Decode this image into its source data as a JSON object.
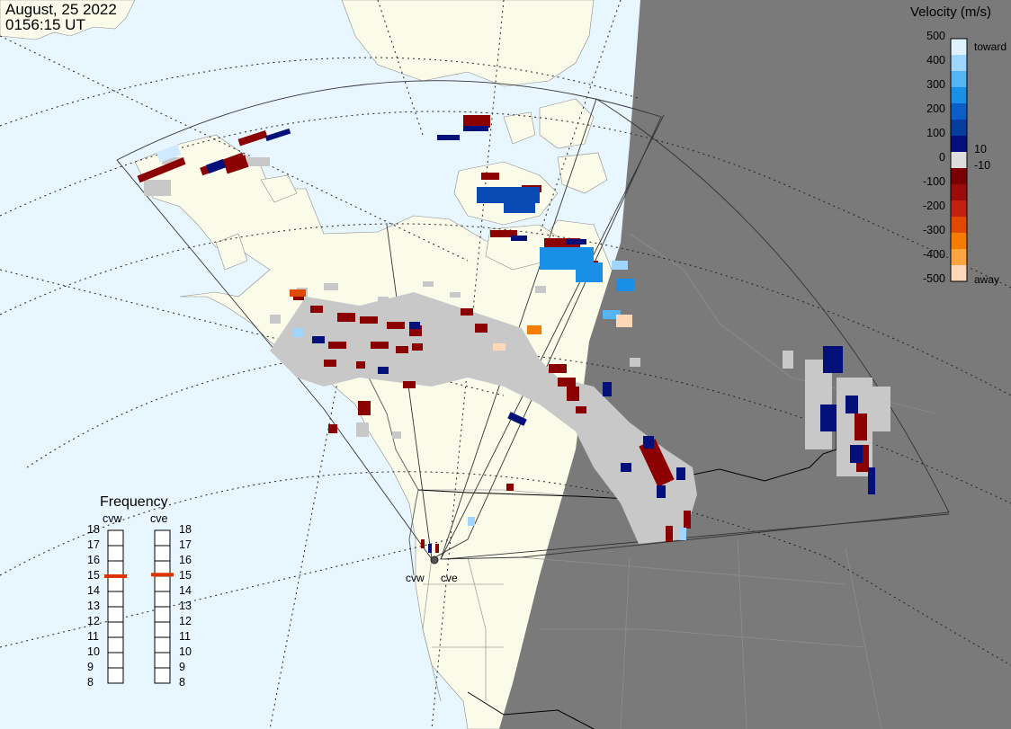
{
  "header": {
    "date": "August, 25 2022",
    "time": "0156:15 UT"
  },
  "velocity_scale": {
    "title": "Velocity (m/s)",
    "ticks": [
      "500",
      "400",
      "300",
      "200",
      "100",
      "10",
      "0",
      "-10",
      "-100",
      "-200",
      "-300",
      "-400",
      "-500"
    ],
    "toward_label": "toward",
    "away_label": "away",
    "colors": [
      "#dff3ff",
      "#9fd6ff",
      "#55b4f5",
      "#1a8fe8",
      "#0a5fc7",
      "#083da0",
      "#04107a",
      "#dddddd",
      "#7a0000",
      "#9b0d0d",
      "#c22010",
      "#e04a00",
      "#f47c00",
      "#ffa440",
      "#ffd8b8"
    ]
  },
  "frequency": {
    "title": "Frequency",
    "radars": [
      {
        "name": "cvw",
        "value": 15
      },
      {
        "name": "cve",
        "value": 15.1
      }
    ],
    "ticks": [
      "18",
      "17",
      "16",
      "15",
      "14",
      "13",
      "12",
      "11",
      "10",
      "9",
      "8"
    ],
    "bar_color": "#dd3300"
  },
  "radar_labels": [
    "cvw",
    "cve"
  ],
  "map_colors": {
    "ocean": "#e8f6ff",
    "land": "#fbfbea",
    "night": "#7a7a7a",
    "ground_scatter": "#c8c8c8"
  }
}
